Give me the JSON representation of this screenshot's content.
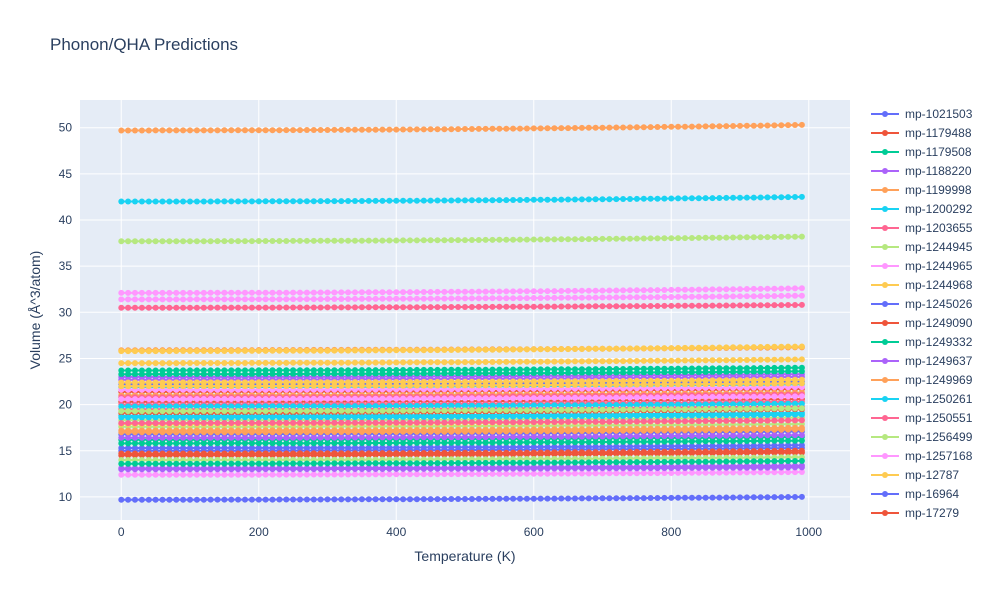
{
  "chart_data": {
    "type": "line",
    "title": "Phonon/QHA Predictions",
    "xlabel": "Temperature (K)",
    "ylabel": "Volume (Å^3/atom)",
    "xlim": [
      -60,
      1060
    ],
    "ylim": [
      7.5,
      53
    ],
    "xticks": [
      0,
      200,
      400,
      600,
      800,
      1000
    ],
    "yticks": [
      10,
      15,
      20,
      25,
      30,
      35,
      40,
      45,
      50
    ],
    "grid": true,
    "legend_position": "right",
    "x": [
      0,
      10,
      20,
      30,
      40,
      50,
      60,
      70,
      80,
      90,
      100,
      110,
      120,
      130,
      140,
      150,
      160,
      170,
      180,
      190,
      200,
      210,
      220,
      230,
      240,
      250,
      260,
      270,
      280,
      290,
      300,
      310,
      320,
      330,
      340,
      350,
      360,
      370,
      380,
      390,
      400,
      410,
      420,
      430,
      440,
      450,
      460,
      470,
      480,
      490,
      500,
      510,
      520,
      530,
      540,
      550,
      560,
      570,
      580,
      590,
      600,
      610,
      620,
      630,
      640,
      650,
      660,
      670,
      680,
      690,
      700,
      710,
      720,
      730,
      740,
      750,
      760,
      770,
      780,
      790,
      800,
      810,
      820,
      830,
      840,
      850,
      860,
      870,
      880,
      890,
      900,
      910,
      920,
      930,
      940,
      950,
      960,
      970,
      980,
      990
    ],
    "series": [
      {
        "name": "mp-1021503",
        "color": "#636efa",
        "v0": 9.7,
        "v1": 10.0
      },
      {
        "name": "mp-1179488",
        "color": "#EF553B",
        "v0": 14.5,
        "v1": 14.8
      },
      {
        "name": "mp-1179508",
        "color": "#00cc96",
        "v0": 23.7,
        "v1": 24.0
      },
      {
        "name": "mp-1188220",
        "color": "#ab63fa",
        "v0": 13.1,
        "v1": 13.4
      },
      {
        "name": "mp-1199998",
        "color": "#FFA15A",
        "v0": 49.7,
        "v1": 50.3
      },
      {
        "name": "mp-1200292",
        "color": "#19d3f3",
        "v0": 42.0,
        "v1": 42.5
      },
      {
        "name": "mp-1203655",
        "color": "#FF6692",
        "v0": 30.5,
        "v1": 30.8
      },
      {
        "name": "mp-1244945",
        "color": "#B6E880",
        "v0": 37.7,
        "v1": 38.2
      },
      {
        "name": "mp-1244965",
        "color": "#FF97FF",
        "v0": 32.1,
        "v1": 32.6
      },
      {
        "name": "mp-1244968",
        "color": "#FECB52",
        "v0": 24.5,
        "v1": 24.9
      },
      {
        "name": "mp-1245026",
        "color": "#636efa",
        "v0": 22.2,
        "v1": 22.5
      },
      {
        "name": "mp-1249090",
        "color": "#EF553B",
        "v0": 20.3,
        "v1": 20.6
      },
      {
        "name": "mp-1249332",
        "color": "#00cc96",
        "v0": 16.2,
        "v1": 16.5
      },
      {
        "name": "mp-1249637",
        "color": "#ab63fa",
        "v0": 23.0,
        "v1": 23.3
      },
      {
        "name": "mp-1249969",
        "color": "#FFA15A",
        "v0": 25.9,
        "v1": 26.2
      },
      {
        "name": "mp-1250261",
        "color": "#19d3f3",
        "v0": 18.8,
        "v1": 19.1
      },
      {
        "name": "mp-1250551",
        "color": "#FF6692",
        "v0": 19.5,
        "v1": 19.8
      },
      {
        "name": "mp-1256499",
        "color": "#B6E880",
        "v0": 17.6,
        "v1": 17.9
      },
      {
        "name": "mp-1257168",
        "color": "#FF97FF",
        "v0": 31.4,
        "v1": 31.8
      },
      {
        "name": "mp-12787",
        "color": "#FECB52",
        "v0": 25.8,
        "v1": 26.3
      },
      {
        "name": "mp-16964",
        "color": "#636efa",
        "v0": 15.3,
        "v1": 15.6
      },
      {
        "name": "mp-17279",
        "color": "#EF553B",
        "v0": 21.4,
        "v1": 21.7
      },
      {
        "name": "",
        "color": "#00cc96",
        "v0": 23.3,
        "v1": 23.6
      },
      {
        "name": "",
        "color": "#ab63fa",
        "v0": 22.7,
        "v1": 23.0
      },
      {
        "name": "",
        "color": "#FFA15A",
        "v0": 21.0,
        "v1": 21.3
      },
      {
        "name": "",
        "color": "#19d3f3",
        "v0": 21.9,
        "v1": 22.2
      },
      {
        "name": "",
        "color": "#FF6692",
        "v0": 20.0,
        "v1": 20.3
      },
      {
        "name": "",
        "color": "#B6E880",
        "v0": 18.3,
        "v1": 18.6
      },
      {
        "name": "",
        "color": "#FF97FF",
        "v0": 12.4,
        "v1": 12.7
      },
      {
        "name": "",
        "color": "#FECB52",
        "v0": 17.9,
        "v1": 18.3
      },
      {
        "name": "",
        "color": "#636efa",
        "v0": 16.8,
        "v1": 17.1
      },
      {
        "name": "",
        "color": "#EF553B",
        "v0": 19.1,
        "v1": 19.5
      },
      {
        "name": "",
        "color": "#00cc96",
        "v0": 15.8,
        "v1": 16.1
      },
      {
        "name": "",
        "color": "#ab63fa",
        "v0": 13.0,
        "v1": 13.2
      },
      {
        "name": "",
        "color": "#FFA15A",
        "v0": 17.2,
        "v1": 17.5
      },
      {
        "name": "",
        "color": "#19d3f3",
        "v0": 18.6,
        "v1": 18.9
      },
      {
        "name": "",
        "color": "#FF6692",
        "v0": 20.8,
        "v1": 21.1
      },
      {
        "name": "",
        "color": "#B6E880",
        "v0": 14.0,
        "v1": 14.3
      },
      {
        "name": "",
        "color": "#FF97FF",
        "v0": 20.6,
        "v1": 20.9
      },
      {
        "name": "",
        "color": "#FECB52",
        "v0": 22.4,
        "v1": 22.7
      },
      {
        "name": "",
        "color": "#636efa",
        "v0": 15.0,
        "v1": 15.3
      },
      {
        "name": "",
        "color": "#EF553B",
        "v0": 14.7,
        "v1": 15.0
      },
      {
        "name": "",
        "color": "#00cc96",
        "v0": 13.6,
        "v1": 13.9
      },
      {
        "name": "",
        "color": "#ab63fa",
        "v0": 16.4,
        "v1": 16.7
      },
      {
        "name": "",
        "color": "#FFA15A",
        "v0": 17.0,
        "v1": 17.3
      },
      {
        "name": "",
        "color": "#19d3f3",
        "v0": 19.8,
        "v1": 20.1
      },
      {
        "name": "",
        "color": "#FF6692",
        "v0": 18.0,
        "v1": 18.3
      },
      {
        "name": "",
        "color": "#B6E880",
        "v0": 19.3,
        "v1": 19.6
      },
      {
        "name": "",
        "color": "#FF97FF",
        "v0": 21.6,
        "v1": 21.9
      },
      {
        "name": "",
        "color": "#FECB52",
        "v0": 22.0,
        "v1": 22.3
      }
    ]
  }
}
